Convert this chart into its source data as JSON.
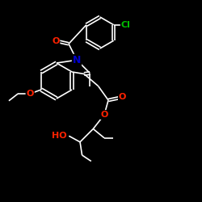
{
  "bg_color": "#000000",
  "bond_color": "#ffffff",
  "atom_colors": {
    "O": "#ff2200",
    "N": "#0000cc",
    "Cl": "#00bb00",
    "C": "#ffffff"
  },
  "bond_width": 1.2,
  "font_size": 8,
  "fig_width": 2.5,
  "fig_height": 2.5,
  "dpi": 100,
  "xlim": [
    0,
    10
  ],
  "ylim": [
    0,
    10
  ]
}
